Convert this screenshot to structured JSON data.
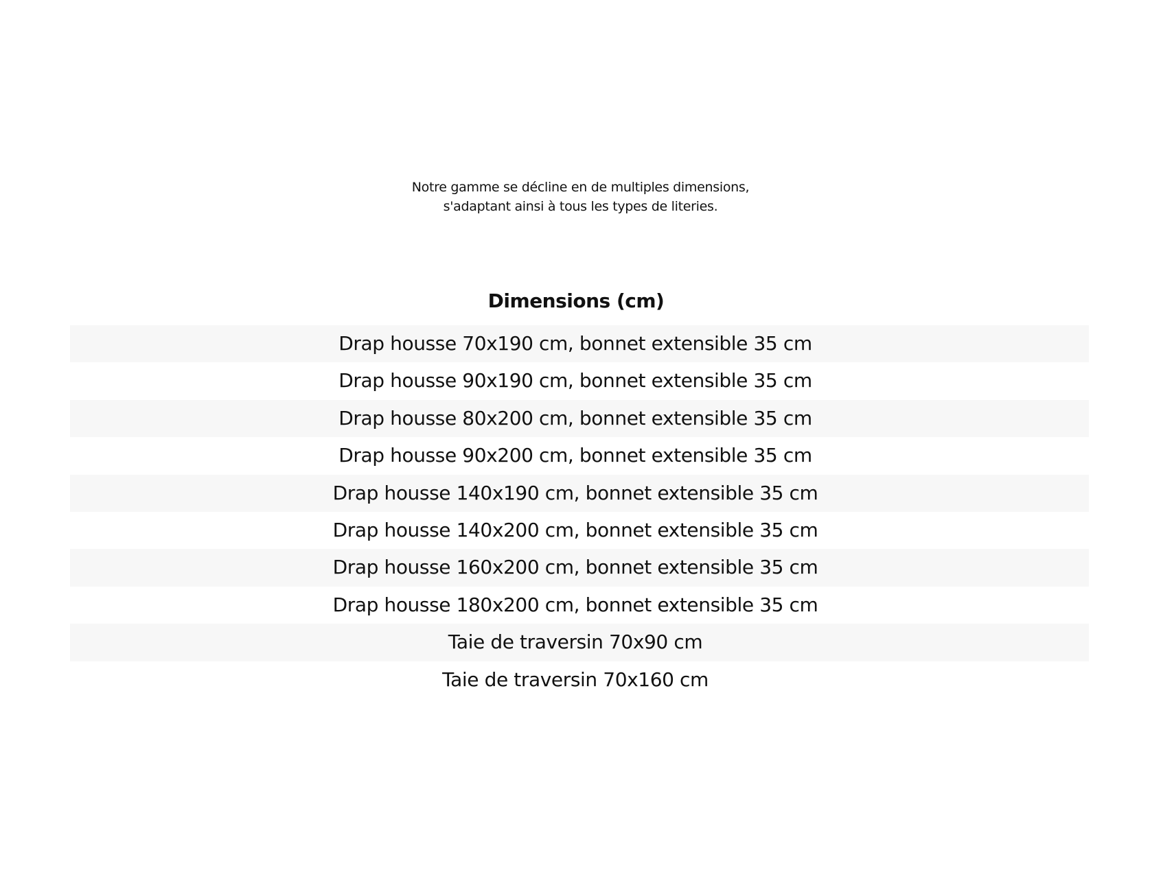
{
  "intro": {
    "line1": "Notre gamme se décline en de multiples dimensions,",
    "line2": "s'adaptant ainsi à tous les types de literies."
  },
  "table": {
    "header": "Dimensions (cm)",
    "rows": [
      "Drap housse 70x190 cm, bonnet extensible 35 cm",
      "Drap housse 90x190 cm, bonnet extensible 35 cm",
      "Drap housse 80x200 cm, bonnet extensible 35 cm",
      "Drap housse 90x200 cm, bonnet extensible 35 cm",
      "Drap housse 140x190 cm, bonnet extensible 35 cm",
      "Drap housse 140x200 cm, bonnet extensible 35 cm",
      "Drap housse 160x200 cm, bonnet extensible 35 cm",
      "Drap housse 180x200 cm, bonnet extensible 35 cm",
      "Taie de traversin 70x90 cm",
      "Taie de traversin 70x160 cm"
    ]
  }
}
